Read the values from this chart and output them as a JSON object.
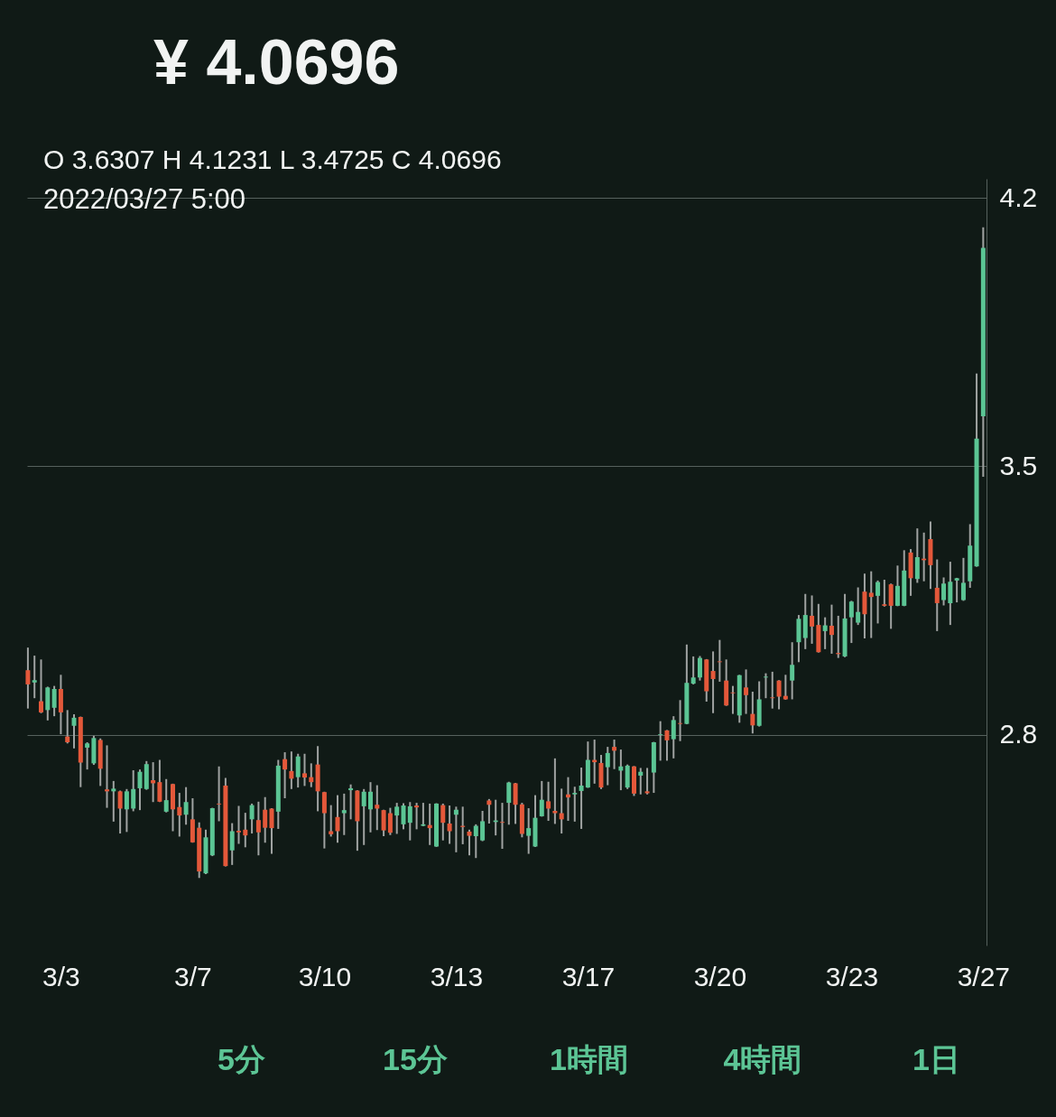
{
  "chart_data": {
    "type": "candlestick",
    "title": "¥ 4.0696",
    "subtitle": "O 3.6307  H 4.1231  L 3.4725  C 4.0696",
    "annotations": [
      "2022/03/27 5:00",
      "5分",
      "15分",
      "1時間",
      "4時間",
      "1日"
    ],
    "x": [
      "2022-03-03T01:00",
      "2022-03-03T05:00",
      "2022-03-03T09:00",
      "2022-03-03T13:00",
      "2022-03-03T17:00",
      "2022-03-03T21:00",
      "2022-03-04T01:00",
      "2022-03-04T05:00",
      "2022-03-04T09:00",
      "2022-03-04T13:00",
      "2022-03-04T17:00",
      "2022-03-04T21:00",
      "2022-03-05T01:00",
      "2022-03-05T05:00",
      "2022-03-05T09:00",
      "2022-03-05T13:00",
      "2022-03-05T17:00",
      "2022-03-05T21:00",
      "2022-03-06T01:00",
      "2022-03-06T05:00",
      "2022-03-06T09:00",
      "2022-03-06T13:00",
      "2022-03-06T17:00",
      "2022-03-06T21:00",
      "2022-03-07T01:00",
      "2022-03-07T05:00",
      "2022-03-07T09:00",
      "2022-03-07T13:00",
      "2022-03-07T17:00",
      "2022-03-07T21:00",
      "2022-03-08T01:00",
      "2022-03-08T05:00",
      "2022-03-08T09:00",
      "2022-03-08T13:00",
      "2022-03-08T17:00",
      "2022-03-08T21:00",
      "2022-03-09T01:00",
      "2022-03-09T05:00",
      "2022-03-09T09:00",
      "2022-03-09T13:00",
      "2022-03-09T17:00",
      "2022-03-09T21:00",
      "2022-03-10T01:00",
      "2022-03-10T05:00",
      "2022-03-10T09:00",
      "2022-03-10T13:00",
      "2022-03-10T17:00",
      "2022-03-10T21:00",
      "2022-03-11T01:00",
      "2022-03-11T05:00",
      "2022-03-11T09:00",
      "2022-03-11T13:00",
      "2022-03-11T17:00",
      "2022-03-11T21:00",
      "2022-03-12T01:00",
      "2022-03-12T05:00",
      "2022-03-12T09:00",
      "2022-03-12T13:00",
      "2022-03-12T17:00",
      "2022-03-12T21:00",
      "2022-03-13T01:00",
      "2022-03-13T05:00",
      "2022-03-13T09:00",
      "2022-03-13T13:00",
      "2022-03-13T17:00",
      "2022-03-13T21:00",
      "2022-03-14T01:00",
      "2022-03-14T05:00",
      "2022-03-14T09:00",
      "2022-03-14T13:00",
      "2022-03-14T17:00",
      "2022-03-14T21:00",
      "2022-03-15T01:00",
      "2022-03-15T05:00",
      "2022-03-15T09:00",
      "2022-03-15T13:00",
      "2022-03-15T17:00",
      "2022-03-15T21:00",
      "2022-03-16T01:00",
      "2022-03-16T05:00",
      "2022-03-16T09:00",
      "2022-03-16T13:00",
      "2022-03-16T17:00",
      "2022-03-16T21:00",
      "2022-03-17T01:00",
      "2022-03-17T05:00",
      "2022-03-17T09:00",
      "2022-03-17T13:00",
      "2022-03-17T17:00",
      "2022-03-17T21:00",
      "2022-03-18T01:00",
      "2022-03-18T05:00",
      "2022-03-18T09:00",
      "2022-03-18T13:00",
      "2022-03-18T17:00",
      "2022-03-18T21:00",
      "2022-03-19T01:00",
      "2022-03-19T05:00",
      "2022-03-19T09:00",
      "2022-03-19T13:00",
      "2022-03-19T17:00",
      "2022-03-19T21:00",
      "2022-03-20T01:00",
      "2022-03-20T05:00",
      "2022-03-20T09:00",
      "2022-03-20T13:00",
      "2022-03-20T17:00",
      "2022-03-20T21:00",
      "2022-03-21T01:00",
      "2022-03-21T05:00",
      "2022-03-21T09:00",
      "2022-03-21T13:00",
      "2022-03-21T17:00",
      "2022-03-21T21:00",
      "2022-03-22T01:00",
      "2022-03-22T05:00",
      "2022-03-22T09:00",
      "2022-03-22T13:00",
      "2022-03-22T17:00",
      "2022-03-22T21:00",
      "2022-03-23T01:00",
      "2022-03-23T05:00",
      "2022-03-23T09:00",
      "2022-03-23T13:00",
      "2022-03-23T17:00",
      "2022-03-23T21:00",
      "2022-03-24T01:00",
      "2022-03-24T05:00",
      "2022-03-24T09:00",
      "2022-03-24T13:00",
      "2022-03-24T17:00",
      "2022-03-24T21:00",
      "2022-03-25T01:00",
      "2022-03-25T05:00",
      "2022-03-25T09:00",
      "2022-03-25T13:00",
      "2022-03-25T17:00",
      "2022-03-25T21:00",
      "2022-03-26T01:00",
      "2022-03-26T05:00",
      "2022-03-26T09:00",
      "2022-03-26T13:00",
      "2022-03-26T17:00",
      "2022-03-26T21:00",
      "2022-03-27T01:00",
      "2022-03-27T05:00"
    ],
    "ohlc": [
      [
        2.968,
        3.027,
        2.868,
        2.931
      ],
      [
        2.936,
        3.006,
        2.895,
        2.942
      ],
      [
        2.887,
        2.996,
        2.856,
        2.858
      ],
      [
        2.864,
        2.925,
        2.837,
        2.923
      ],
      [
        2.87,
        2.927,
        2.848,
        2.919
      ],
      [
        2.919,
        2.956,
        2.801,
        2.858
      ],
      [
        2.795,
        2.864,
        2.777,
        2.78
      ],
      [
        2.823,
        2.853,
        2.764,
        2.844
      ],
      [
        2.846,
        2.847,
        2.663,
        2.727
      ],
      [
        2.766,
        2.78,
        2.709,
        2.777
      ],
      [
        2.725,
        2.797,
        2.721,
        2.791
      ],
      [
        2.786,
        2.79,
        2.666,
        2.711
      ],
      [
        2.657,
        2.772,
        2.609,
        2.652
      ],
      [
        2.652,
        2.679,
        2.573,
        2.659
      ],
      [
        2.652,
        2.654,
        2.542,
        2.607
      ],
      [
        2.605,
        2.658,
        2.546,
        2.652
      ],
      [
        2.607,
        2.707,
        2.6,
        2.658
      ],
      [
        2.66,
        2.709,
        2.603,
        2.703
      ],
      [
        2.658,
        2.731,
        2.656,
        2.723
      ],
      [
        2.681,
        2.728,
        2.624,
        2.673
      ],
      [
        2.676,
        2.734,
        2.624,
        2.625
      ],
      [
        2.599,
        2.684,
        2.597,
        2.629
      ],
      [
        2.671,
        2.672,
        2.548,
        2.605
      ],
      [
        2.611,
        2.648,
        2.534,
        2.589
      ],
      [
        2.591,
        2.663,
        2.565,
        2.624
      ],
      [
        2.579,
        2.634,
        2.518,
        2.519
      ],
      [
        2.557,
        2.571,
        2.426,
        2.443
      ],
      [
        2.438,
        2.552,
        2.436,
        2.532
      ],
      [
        2.485,
        2.609,
        2.483,
        2.608
      ],
      [
        2.62,
        2.717,
        2.574,
        2.618
      ],
      [
        2.667,
        2.687,
        2.456,
        2.457
      ],
      [
        2.498,
        2.569,
        2.46,
        2.548
      ],
      [
        2.549,
        2.614,
        2.515,
        2.545
      ],
      [
        2.552,
        2.596,
        2.506,
        2.537
      ],
      [
        2.579,
        2.62,
        2.542,
        2.616
      ],
      [
        2.577,
        2.625,
        2.485,
        2.545
      ],
      [
        2.604,
        2.637,
        2.518,
        2.557
      ],
      [
        2.607,
        2.608,
        2.489,
        2.556
      ],
      [
        2.599,
        2.734,
        2.554,
        2.719
      ],
      [
        2.736,
        2.754,
        2.634,
        2.709
      ],
      [
        2.705,
        2.756,
        2.658,
        2.685
      ],
      [
        2.689,
        2.75,
        2.662,
        2.743
      ],
      [
        2.699,
        2.75,
        2.666,
        2.688
      ],
      [
        2.689,
        2.725,
        2.663,
        2.676
      ],
      [
        2.722,
        2.77,
        2.6,
        2.652
      ],
      [
        2.65,
        2.651,
        2.503,
        2.595
      ],
      [
        2.548,
        2.616,
        2.534,
        2.54
      ],
      [
        2.585,
        2.642,
        2.518,
        2.548
      ],
      [
        2.595,
        2.646,
        2.538,
        2.603
      ],
      [
        2.655,
        2.67,
        2.579,
        2.66
      ],
      [
        2.654,
        2.655,
        2.497,
        2.574
      ],
      [
        2.613,
        2.658,
        2.512,
        2.651
      ],
      [
        2.605,
        2.676,
        2.545,
        2.651
      ],
      [
        2.617,
        2.668,
        2.551,
        2.607
      ],
      [
        2.603,
        2.604,
        2.535,
        2.55
      ],
      [
        2.595,
        2.609,
        2.538,
        2.544
      ],
      [
        2.589,
        2.622,
        2.541,
        2.612
      ],
      [
        2.566,
        2.621,
        2.553,
        2.615
      ],
      [
        2.57,
        2.624,
        2.524,
        2.613
      ],
      [
        2.615,
        2.622,
        2.553,
        2.61
      ],
      [
        2.562,
        2.622,
        2.561,
        2.566
      ],
      [
        2.564,
        2.62,
        2.512,
        2.556
      ],
      [
        2.508,
        2.621,
        2.507,
        2.62
      ],
      [
        2.616,
        2.62,
        2.524,
        2.57
      ],
      [
        2.568,
        2.615,
        2.515,
        2.548
      ],
      [
        2.591,
        2.612,
        2.493,
        2.604
      ],
      [
        2.562,
        2.612,
        2.514,
        2.559
      ],
      [
        2.547,
        2.552,
        2.485,
        2.536
      ],
      [
        2.535,
        2.566,
        2.478,
        2.562
      ],
      [
        2.524,
        2.601,
        2.522,
        2.574
      ],
      [
        2.628,
        2.632,
        2.568,
        2.617
      ],
      [
        2.572,
        2.63,
        2.537,
        2.576
      ],
      [
        2.572,
        2.622,
        2.502,
        2.57
      ],
      [
        2.622,
        2.677,
        2.565,
        2.675
      ],
      [
        2.673,
        2.674,
        2.567,
        2.617
      ],
      [
        2.618,
        2.622,
        2.532,
        2.541
      ],
      [
        2.536,
        2.608,
        2.489,
        2.556
      ],
      [
        2.508,
        2.642,
        2.507,
        2.583
      ],
      [
        2.587,
        2.679,
        2.586,
        2.63
      ],
      [
        2.626,
        2.677,
        2.575,
        2.607
      ],
      [
        2.601,
        2.738,
        2.567,
        2.595
      ],
      [
        2.595,
        2.659,
        2.542,
        2.579
      ],
      [
        2.644,
        2.689,
        2.575,
        2.636
      ],
      [
        2.644,
        2.664,
        2.573,
        2.648
      ],
      [
        2.653,
        2.714,
        2.554,
        2.667
      ],
      [
        2.662,
        2.782,
        2.661,
        2.734
      ],
      [
        2.734,
        2.787,
        2.672,
        2.728
      ],
      [
        2.726,
        2.747,
        2.658,
        2.662
      ],
      [
        2.715,
        2.768,
        2.668,
        2.752
      ],
      [
        2.768,
        2.787,
        2.71,
        2.758
      ],
      [
        2.706,
        2.761,
        2.655,
        2.717
      ],
      [
        2.662,
        2.722,
        2.658,
        2.719
      ],
      [
        2.717,
        2.718,
        2.64,
        2.646
      ],
      [
        2.693,
        2.713,
        2.644,
        2.703
      ],
      [
        2.652,
        2.713,
        2.644,
        2.647
      ],
      [
        2.701,
        2.781,
        2.648,
        2.78
      ],
      [
        2.799,
        2.835,
        2.732,
        2.801
      ],
      [
        2.811,
        2.812,
        2.732,
        2.785
      ],
      [
        2.788,
        2.848,
        2.738,
        2.838
      ],
      [
        2.83,
        2.89,
        2.783,
        2.828
      ],
      [
        2.828,
        3.035,
        2.827,
        2.935
      ],
      [
        2.933,
        3.004,
        2.931,
        2.949
      ],
      [
        2.949,
        3.005,
        2.941,
        3.0
      ],
      [
        2.996,
        2.997,
        2.886,
        2.913
      ],
      [
        2.966,
        3.017,
        2.856,
        2.945
      ],
      [
        2.991,
        3.047,
        2.938,
        2.989
      ],
      [
        2.941,
        2.996,
        2.875,
        2.876
      ],
      [
        2.91,
        2.927,
        2.854,
        2.908
      ],
      [
        2.85,
        2.956,
        2.831,
        2.955
      ],
      [
        2.923,
        2.97,
        2.854,
        2.903
      ],
      [
        2.854,
        2.912,
        2.803,
        2.824
      ],
      [
        2.823,
        2.939,
        2.821,
        2.892
      ],
      [
        2.949,
        2.96,
        2.895,
        2.951
      ],
      [
        2.897,
        2.964,
        2.868,
        2.895
      ],
      [
        2.941,
        2.942,
        2.866,
        2.899
      ],
      [
        2.901,
        2.956,
        2.891,
        2.892
      ],
      [
        2.941,
        3.041,
        2.892,
        2.982
      ],
      [
        3.041,
        3.112,
        2.989,
        3.102
      ],
      [
        3.052,
        3.167,
        3.023,
        3.112
      ],
      [
        3.11,
        3.163,
        3.037,
        3.082
      ],
      [
        3.086,
        3.141,
        3.014,
        3.015
      ],
      [
        3.07,
        3.106,
        3.023,
        3.085
      ],
      [
        3.084,
        3.139,
        3.011,
        3.06
      ],
      [
        3.013,
        3.11,
        3.0,
        3.01
      ],
      [
        3.004,
        3.167,
        3.002,
        3.103
      ],
      [
        3.106,
        3.149,
        3.039,
        3.147
      ],
      [
        3.092,
        3.184,
        3.086,
        3.12
      ],
      [
        3.173,
        3.22,
        3.051,
        3.114
      ],
      [
        3.17,
        3.226,
        3.052,
        3.159
      ],
      [
        3.162,
        3.202,
        3.09,
        3.198
      ],
      [
        3.14,
        3.204,
        3.134,
        3.136
      ],
      [
        3.192,
        3.194,
        3.076,
        3.136
      ],
      [
        3.136,
        3.241,
        3.135,
        3.188
      ],
      [
        3.136,
        3.281,
        3.135,
        3.228
      ],
      [
        3.275,
        3.284,
        3.162,
        3.208
      ],
      [
        3.206,
        3.338,
        3.196,
        3.263
      ],
      [
        3.259,
        3.327,
        3.2,
        3.255
      ],
      [
        3.31,
        3.356,
        3.18,
        3.242
      ],
      [
        3.183,
        3.257,
        3.07,
        3.143
      ],
      [
        3.151,
        3.21,
        3.137,
        3.194
      ],
      [
        3.143,
        3.251,
        3.086,
        3.199
      ],
      [
        3.202,
        3.209,
        3.145,
        3.208
      ],
      [
        3.151,
        3.261,
        3.149,
        3.196
      ],
      [
        3.2,
        3.349,
        3.183,
        3.293
      ],
      [
        3.239,
        3.742,
        3.238,
        3.572
      ],
      [
        3.6307,
        4.1231,
        3.4725,
        4.0696
      ]
    ],
    "colors": [
      "#e4583a",
      "#5bc594",
      "#e4583a",
      "#5bc594",
      "#5bc594",
      "#e4583a",
      "#e4583a",
      "#5bc594",
      "#e4583a",
      "#5bc594",
      "#5bc594",
      "#e4583a",
      "#e4583a",
      "#5bc594",
      "#e4583a",
      "#5bc594",
      "#5bc594",
      "#5bc594",
      "#5bc594",
      "#e4583a",
      "#e4583a",
      "#5bc594",
      "#e4583a",
      "#e4583a",
      "#5bc594",
      "#e4583a",
      "#e4583a",
      "#5bc594",
      "#5bc594",
      "#e4583a",
      "#e4583a",
      "#5bc594",
      "#e4583a",
      "#e4583a",
      "#5bc594",
      "#e4583a",
      "#e4583a",
      "#e4583a",
      "#5bc594",
      "#e4583a",
      "#e4583a",
      "#5bc594",
      "#e4583a",
      "#e4583a",
      "#e4583a",
      "#e4583a",
      "#e4583a",
      "#e4583a",
      "#5bc594",
      "#5bc594",
      "#e4583a",
      "#5bc594",
      "#5bc594",
      "#e4583a",
      "#e4583a",
      "#e4583a",
      "#5bc594",
      "#5bc594",
      "#5bc594",
      "#e4583a",
      "#5bc594",
      "#e4583a",
      "#5bc594",
      "#e4583a",
      "#e4583a",
      "#5bc594",
      "#e4583a",
      "#e4583a",
      "#5bc594",
      "#5bc594",
      "#e4583a",
      "#5bc594",
      "#e4583a",
      "#5bc594",
      "#e4583a",
      "#e4583a",
      "#5bc594",
      "#5bc594",
      "#5bc594",
      "#e4583a",
      "#e4583a",
      "#e4583a",
      "#e4583a",
      "#5bc594",
      "#5bc594",
      "#5bc594",
      "#e4583a",
      "#e4583a",
      "#5bc594",
      "#e4583a",
      "#5bc594",
      "#5bc594",
      "#e4583a",
      "#5bc594",
      "#e4583a",
      "#5bc594",
      "#5bc594",
      "#e4583a",
      "#5bc594",
      "#e4583a",
      "#5bc594",
      "#5bc594",
      "#5bc594",
      "#e4583a",
      "#e4583a",
      "#e4583a",
      "#e4583a",
      "#e4583a",
      "#5bc594",
      "#e4583a",
      "#e4583a",
      "#5bc594",
      "#5bc594",
      "#e4583a",
      "#e4583a",
      "#e4583a",
      "#5bc594",
      "#5bc594",
      "#5bc594",
      "#e4583a",
      "#e4583a",
      "#5bc594",
      "#e4583a",
      "#e4583a",
      "#5bc594",
      "#5bc594",
      "#5bc594",
      "#e4583a",
      "#e4583a",
      "#5bc594",
      "#e4583a",
      "#e4583a",
      "#5bc594",
      "#5bc594",
      "#e4583a",
      "#5bc594",
      "#e4583a",
      "#e4583a",
      "#e4583a",
      "#5bc594",
      "#5bc594",
      "#5bc594",
      "#5bc594",
      "#5bc594",
      "#5bc594",
      "#5bc594"
    ],
    "xlim": [
      "2022-03-03T00:30",
      "2022-03-27T07:00"
    ],
    "xticks": [
      {
        "value": "2022-03-03T21:00",
        "label": "3/3"
      },
      {
        "value": "2022-03-07T05:00",
        "label": "3/7"
      },
      {
        "value": "2022-03-10T13:00",
        "label": "3/10"
      },
      {
        "value": "2022-03-13T21:00",
        "label": "3/13"
      },
      {
        "value": "2022-03-17T05:00",
        "label": "3/17"
      },
      {
        "value": "2022-03-20T13:00",
        "label": "3/20"
      },
      {
        "value": "2022-03-23T21:00",
        "label": "3/23"
      },
      {
        "value": "2022-03-27T05:00",
        "label": "3/27"
      }
    ],
    "ylim": [
      2.25,
      4.25
    ],
    "yticks": [
      2.8,
      3.5,
      4.2
    ],
    "grid": "y"
  }
}
